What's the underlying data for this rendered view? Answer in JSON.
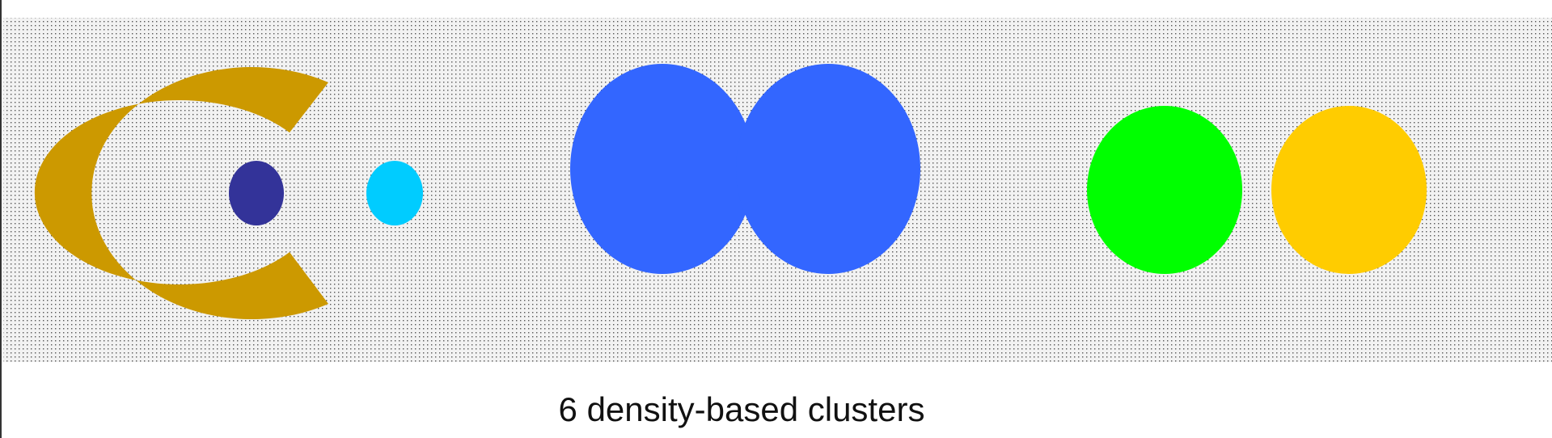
{
  "caption": "6 density-based clusters",
  "colors": {
    "background_dots": "#555555",
    "background_fill": "#f2f2f2",
    "crescent": "#cc9900",
    "inner_dot": "#333399",
    "small_dot": "#00ccff",
    "double_blob": "#3366ff",
    "green_blob": "#00ff00",
    "yellow_blob": "#ffcc00"
  }
}
